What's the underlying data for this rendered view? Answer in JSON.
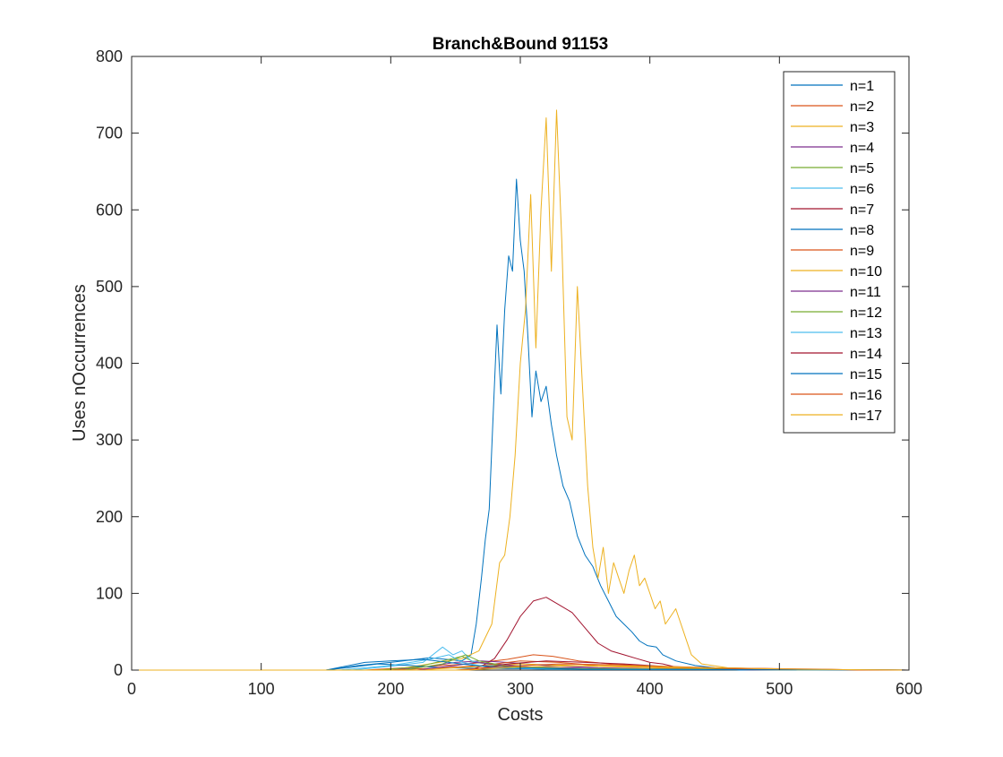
{
  "chart_data": {
    "type": "line",
    "title": "Branch&Bound 91153",
    "xlabel": "Costs",
    "ylabel": "Uses nOccurrences",
    "xlim": [
      0,
      600
    ],
    "ylim": [
      0,
      800
    ],
    "xticks": [
      0,
      100,
      200,
      300,
      400,
      500,
      600
    ],
    "yticks": [
      0,
      100,
      200,
      300,
      400,
      500,
      600,
      700,
      800
    ],
    "grid": false,
    "legend_position": "top-right",
    "series": [
      {
        "name": "n=1",
        "color": "#0072BD",
        "points": [
          [
            0,
            0
          ],
          [
            150,
            0
          ],
          [
            175,
            6
          ],
          [
            200,
            10
          ],
          [
            230,
            16
          ],
          [
            255,
            12
          ],
          [
            262,
            20
          ],
          [
            266,
            60
          ],
          [
            270,
            120
          ],
          [
            273,
            170
          ],
          [
            276,
            210
          ],
          [
            279,
            330
          ],
          [
            282,
            450
          ],
          [
            285,
            360
          ],
          [
            288,
            470
          ],
          [
            291,
            540
          ],
          [
            294,
            520
          ],
          [
            297,
            640
          ],
          [
            300,
            560
          ],
          [
            303,
            520
          ],
          [
            306,
            430
          ],
          [
            309,
            330
          ],
          [
            312,
            390
          ],
          [
            316,
            350
          ],
          [
            320,
            370
          ],
          [
            324,
            320
          ],
          [
            328,
            280
          ],
          [
            333,
            240
          ],
          [
            338,
            220
          ],
          [
            344,
            175
          ],
          [
            350,
            150
          ],
          [
            356,
            135
          ],
          [
            362,
            110
          ],
          [
            368,
            90
          ],
          [
            374,
            70
          ],
          [
            380,
            60
          ],
          [
            386,
            50
          ],
          [
            392,
            38
          ],
          [
            398,
            32
          ],
          [
            405,
            30
          ],
          [
            410,
            20
          ],
          [
            420,
            12
          ],
          [
            435,
            6
          ],
          [
            450,
            3
          ],
          [
            470,
            0
          ],
          [
            600,
            0
          ]
        ]
      },
      {
        "name": "n=2",
        "color": "#D95319",
        "points": [
          [
            0,
            0
          ],
          [
            180,
            0
          ],
          [
            220,
            4
          ],
          [
            260,
            8
          ],
          [
            290,
            14
          ],
          [
            310,
            20
          ],
          [
            325,
            18
          ],
          [
            345,
            12
          ],
          [
            370,
            8
          ],
          [
            400,
            5
          ],
          [
            440,
            3
          ],
          [
            490,
            2
          ],
          [
            530,
            0
          ],
          [
            600,
            0
          ]
        ]
      },
      {
        "name": "n=3",
        "color": "#EDB120",
        "points": [
          [
            0,
            0
          ],
          [
            200,
            0
          ],
          [
            230,
            8
          ],
          [
            255,
            15
          ],
          [
            268,
            25
          ],
          [
            278,
            60
          ],
          [
            284,
            140
          ],
          [
            288,
            150
          ],
          [
            292,
            200
          ],
          [
            296,
            280
          ],
          [
            300,
            400
          ],
          [
            304,
            470
          ],
          [
            308,
            620
          ],
          [
            312,
            420
          ],
          [
            316,
            600
          ],
          [
            320,
            720
          ],
          [
            324,
            520
          ],
          [
            328,
            730
          ],
          [
            332,
            560
          ],
          [
            336,
            330
          ],
          [
            340,
            300
          ],
          [
            344,
            500
          ],
          [
            348,
            370
          ],
          [
            352,
            240
          ],
          [
            356,
            160
          ],
          [
            360,
            120
          ],
          [
            364,
            160
          ],
          [
            368,
            100
          ],
          [
            372,
            140
          ],
          [
            376,
            120
          ],
          [
            380,
            100
          ],
          [
            384,
            130
          ],
          [
            388,
            150
          ],
          [
            392,
            110
          ],
          [
            396,
            120
          ],
          [
            400,
            100
          ],
          [
            404,
            80
          ],
          [
            408,
            90
          ],
          [
            412,
            60
          ],
          [
            416,
            70
          ],
          [
            420,
            80
          ],
          [
            424,
            60
          ],
          [
            428,
            40
          ],
          [
            432,
            20
          ],
          [
            440,
            8
          ],
          [
            460,
            3
          ],
          [
            500,
            1
          ],
          [
            600,
            0
          ]
        ]
      },
      {
        "name": "n=4",
        "color": "#7E2F8E",
        "points": [
          [
            0,
            0
          ],
          [
            200,
            0
          ],
          [
            230,
            5
          ],
          [
            250,
            10
          ],
          [
            270,
            12
          ],
          [
            290,
            10
          ],
          [
            320,
            6
          ],
          [
            360,
            3
          ],
          [
            420,
            1
          ],
          [
            600,
            0
          ]
        ]
      },
      {
        "name": "n=5",
        "color": "#77AC30",
        "points": [
          [
            0,
            0
          ],
          [
            190,
            0
          ],
          [
            220,
            4
          ],
          [
            240,
            12
          ],
          [
            255,
            18
          ],
          [
            265,
            10
          ],
          [
            285,
            6
          ],
          [
            320,
            3
          ],
          [
            400,
            1
          ],
          [
            600,
            0
          ]
        ]
      },
      {
        "name": "n=6",
        "color": "#4DBEEE",
        "points": [
          [
            0,
            0
          ],
          [
            170,
            0
          ],
          [
            200,
            5
          ],
          [
            225,
            10
          ],
          [
            240,
            30
          ],
          [
            248,
            20
          ],
          [
            255,
            25
          ],
          [
            262,
            12
          ],
          [
            280,
            6
          ],
          [
            320,
            2
          ],
          [
            600,
            0
          ]
        ]
      },
      {
        "name": "n=7",
        "color": "#A2142F",
        "points": [
          [
            0,
            0
          ],
          [
            260,
            0
          ],
          [
            270,
            5
          ],
          [
            280,
            15
          ],
          [
            290,
            40
          ],
          [
            300,
            70
          ],
          [
            310,
            90
          ],
          [
            320,
            95
          ],
          [
            330,
            85
          ],
          [
            340,
            75
          ],
          [
            350,
            55
          ],
          [
            360,
            35
          ],
          [
            370,
            25
          ],
          [
            380,
            20
          ],
          [
            390,
            15
          ],
          [
            400,
            10
          ],
          [
            410,
            8
          ],
          [
            420,
            4
          ],
          [
            440,
            2
          ],
          [
            480,
            0
          ],
          [
            600,
            0
          ]
        ]
      },
      {
        "name": "n=8",
        "color": "#0072BD",
        "points": [
          [
            0,
            0
          ],
          [
            150,
            0
          ],
          [
            170,
            4
          ],
          [
            190,
            8
          ],
          [
            215,
            6
          ],
          [
            240,
            3
          ],
          [
            280,
            2
          ],
          [
            350,
            1
          ],
          [
            600,
            0
          ]
        ]
      },
      {
        "name": "n=9",
        "color": "#D95319",
        "points": [
          [
            0,
            0
          ],
          [
            200,
            0
          ],
          [
            240,
            3
          ],
          [
            270,
            6
          ],
          [
            300,
            12
          ],
          [
            330,
            10
          ],
          [
            360,
            6
          ],
          [
            400,
            4
          ],
          [
            450,
            2
          ],
          [
            510,
            1
          ],
          [
            600,
            0
          ]
        ]
      },
      {
        "name": "n=10",
        "color": "#EDB120",
        "points": [
          [
            0,
            0
          ],
          [
            220,
            0
          ],
          [
            260,
            4
          ],
          [
            300,
            8
          ],
          [
            340,
            6
          ],
          [
            380,
            4
          ],
          [
            430,
            2
          ],
          [
            500,
            0
          ],
          [
            600,
            0
          ]
        ]
      },
      {
        "name": "n=11",
        "color": "#7E2F8E",
        "points": [
          [
            0,
            0
          ],
          [
            220,
            0
          ],
          [
            250,
            6
          ],
          [
            265,
            10
          ],
          [
            280,
            8
          ],
          [
            310,
            4
          ],
          [
            360,
            2
          ],
          [
            600,
            0
          ]
        ]
      },
      {
        "name": "n=12",
        "color": "#77AC30",
        "points": [
          [
            0,
            0
          ],
          [
            210,
            0
          ],
          [
            240,
            8
          ],
          [
            258,
            20
          ],
          [
            268,
            12
          ],
          [
            290,
            5
          ],
          [
            340,
            2
          ],
          [
            600,
            0
          ]
        ]
      },
      {
        "name": "n=13",
        "color": "#4DBEEE",
        "points": [
          [
            0,
            0
          ],
          [
            160,
            0
          ],
          [
            200,
            6
          ],
          [
            230,
            14
          ],
          [
            245,
            20
          ],
          [
            255,
            10
          ],
          [
            275,
            4
          ],
          [
            320,
            1
          ],
          [
            600,
            0
          ]
        ]
      },
      {
        "name": "n=14",
        "color": "#A2142F",
        "points": [
          [
            0,
            0
          ],
          [
            260,
            0
          ],
          [
            290,
            8
          ],
          [
            320,
            12
          ],
          [
            350,
            10
          ],
          [
            380,
            8
          ],
          [
            410,
            5
          ],
          [
            440,
            3
          ],
          [
            480,
            1
          ],
          [
            600,
            0
          ]
        ]
      },
      {
        "name": "n=15",
        "color": "#0072BD",
        "points": [
          [
            0,
            0
          ],
          [
            150,
            0
          ],
          [
            180,
            10
          ],
          [
            200,
            12
          ],
          [
            225,
            14
          ],
          [
            245,
            10
          ],
          [
            265,
            6
          ],
          [
            300,
            3
          ],
          [
            350,
            1
          ],
          [
            600,
            0
          ]
        ]
      },
      {
        "name": "n=16",
        "color": "#D95319",
        "points": [
          [
            0,
            0
          ],
          [
            250,
            0
          ],
          [
            290,
            5
          ],
          [
            330,
            8
          ],
          [
            370,
            7
          ],
          [
            410,
            5
          ],
          [
            450,
            3
          ],
          [
            490,
            2
          ],
          [
            540,
            1
          ],
          [
            560,
            0
          ],
          [
            600,
            0
          ]
        ]
      },
      {
        "name": "n=17",
        "color": "#EDB120",
        "points": [
          [
            0,
            0
          ],
          [
            260,
            0
          ],
          [
            300,
            4
          ],
          [
            350,
            6
          ],
          [
            400,
            5
          ],
          [
            440,
            3
          ],
          [
            480,
            2
          ],
          [
            520,
            1
          ],
          [
            600,
            0
          ]
        ]
      }
    ]
  }
}
